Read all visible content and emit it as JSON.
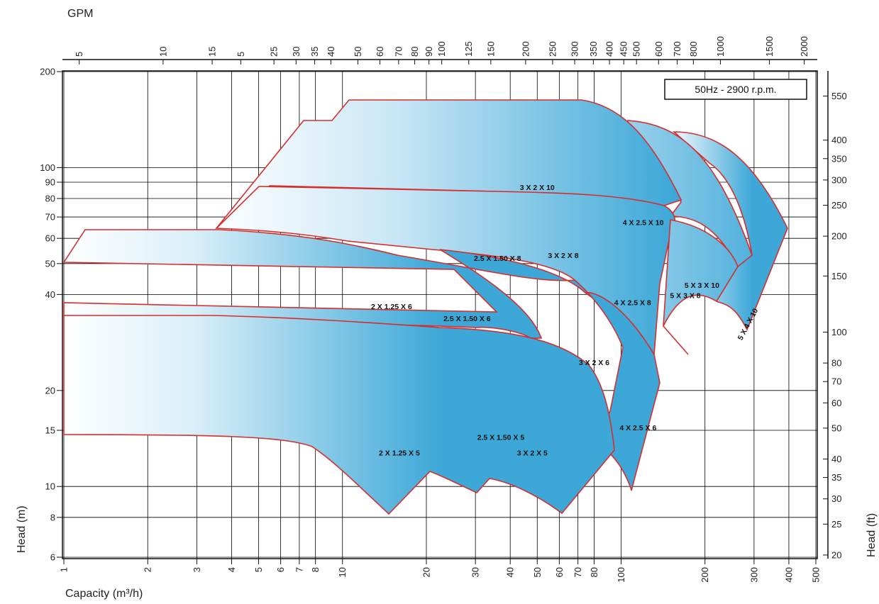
{
  "chart_data": {
    "type": "area",
    "title": "",
    "badge": "50Hz - 2900 r.p.m.",
    "xlabel": "Capacity (m³/h)",
    "ylabel": "Head (m)",
    "x2label": "GPM",
    "y2label": "Head (ft)",
    "xscale": "log",
    "yscale": "log",
    "xlim": [
      1,
      500
    ],
    "ylim": [
      6,
      200
    ],
    "grid": true,
    "x_ticks": [
      "1",
      "2",
      "3",
      "4",
      "5",
      "6",
      "7",
      "8",
      "10",
      "20",
      "30",
      "40",
      "50",
      "60",
      "70",
      "80",
      "100",
      "200",
      "300",
      "400",
      "500"
    ],
    "y_ticks": [
      "6",
      "8",
      "10",
      "15",
      "20",
      "40",
      "50",
      "60",
      "70",
      "80",
      "90",
      "100",
      "200"
    ],
    "gpm_ticks": [
      "5",
      "10",
      "15",
      "5",
      "25",
      "30",
      "35",
      "40",
      "50",
      "60",
      "70",
      "80",
      "90",
      "100",
      "125",
      "150",
      "200",
      "250",
      "300",
      "350",
      "400",
      "450",
      "500",
      "600",
      "700",
      "800",
      "1000",
      "1500",
      "2000"
    ],
    "ft_ticks": [
      "20",
      "25",
      "30",
      "35",
      "40",
      "50",
      "60",
      "70",
      "80",
      "100",
      "150",
      "200",
      "250",
      "300",
      "350",
      "400",
      "550"
    ],
    "colors": {
      "envelope_stroke": "#d32f2f",
      "fill_dark": "#3da8d8",
      "fill_light": "#ffffff",
      "grid": "#000000"
    },
    "series": [
      {
        "name": "5 X 4 X 10",
        "hq_max": [
          [
            280,
            128
          ],
          [
            400,
            55
          ]
        ],
        "hq_min": [
          [
            260,
            32
          ]
        ]
      },
      {
        "name": "5 X 3 X 10",
        "hq_max": [
          [
            150,
            128
          ],
          [
            330,
            45
          ]
        ],
        "hq_min": [
          [
            230,
            47
          ]
        ]
      },
      {
        "name": "4 X 2.5 X 10",
        "hq_max": [
          [
            100,
            128
          ],
          [
            130,
            65
          ]
        ],
        "hq_min": [
          [
            110,
            65
          ]
        ]
      },
      {
        "name": "3 X 2 X 10",
        "hq_max": [
          [
            12,
            142
          ],
          [
            100,
            65
          ]
        ],
        "hq_min": [
          [
            10,
            110
          ]
        ]
      },
      {
        "name": "5 X 3 X 8",
        "hq_max": [
          [
            130,
            65
          ],
          [
            210,
            41
          ]
        ],
        "hq_min": [
          [
            160,
            24
          ]
        ]
      },
      {
        "name": "4 X 2.5 X 8",
        "hq_max": [
          [
            70,
            70
          ],
          [
            130,
            54
          ]
        ],
        "hq_min": [
          [
            120,
            20
          ]
        ]
      },
      {
        "name": "3 X 2 X 8",
        "hq_max": [
          [
            40,
            70
          ],
          [
            90,
            53
          ]
        ],
        "hq_min": [
          [
            80,
            35
          ]
        ]
      },
      {
        "name": "2.5 X 1.50 X 8",
        "hq_max": [
          [
            7,
            70
          ],
          [
            90,
            38
          ]
        ],
        "hq_min": [
          [
            5,
            53
          ]
        ]
      },
      {
        "name": "4 X 2.5 X 6",
        "hq_max": [
          [
            80,
            36
          ],
          [
            130,
            19
          ]
        ],
        "hq_min": [
          [
            110,
            9.3
          ]
        ]
      },
      {
        "name": "3 X 2 X 6",
        "hq_max": [
          [
            30,
            48
          ],
          [
            80,
            26
          ]
        ],
        "hq_min": [
          [
            100,
            14.5
          ]
        ]
      },
      {
        "name": "2.5  X 1.50 X 6",
        "hq_max": [
          [
            15,
            53
          ],
          [
            45,
            27
          ]
        ],
        "hq_min": [
          [
            18,
            32
          ]
        ]
      },
      {
        "name": "2 X 1.25 X 6",
        "hq_max": [
          [
            1.2,
            53
          ],
          [
            27,
            27
          ]
        ],
        "hq_min": [
          [
            1,
            32
          ]
        ]
      },
      {
        "name": "3 X 2 X 5",
        "hq_max": [
          [
            30,
            27
          ],
          [
            90,
            13.5
          ]
        ],
        "hq_min": [
          [
            55,
            8.5
          ]
        ]
      },
      {
        "name": "2.5 X 1.50 X 5",
        "hq_max": [
          [
            22,
            27
          ],
          [
            60,
            13.5
          ]
        ],
        "hq_min": [
          [
            25,
            9
          ]
        ]
      },
      {
        "name": "2 X 1.25 X 5",
        "hq_max": [
          [
            1,
            30
          ],
          [
            21,
            13
          ]
        ],
        "hq_min": [
          [
            1,
            14
          ],
          [
            14,
            8.2
          ]
        ]
      }
    ]
  }
}
